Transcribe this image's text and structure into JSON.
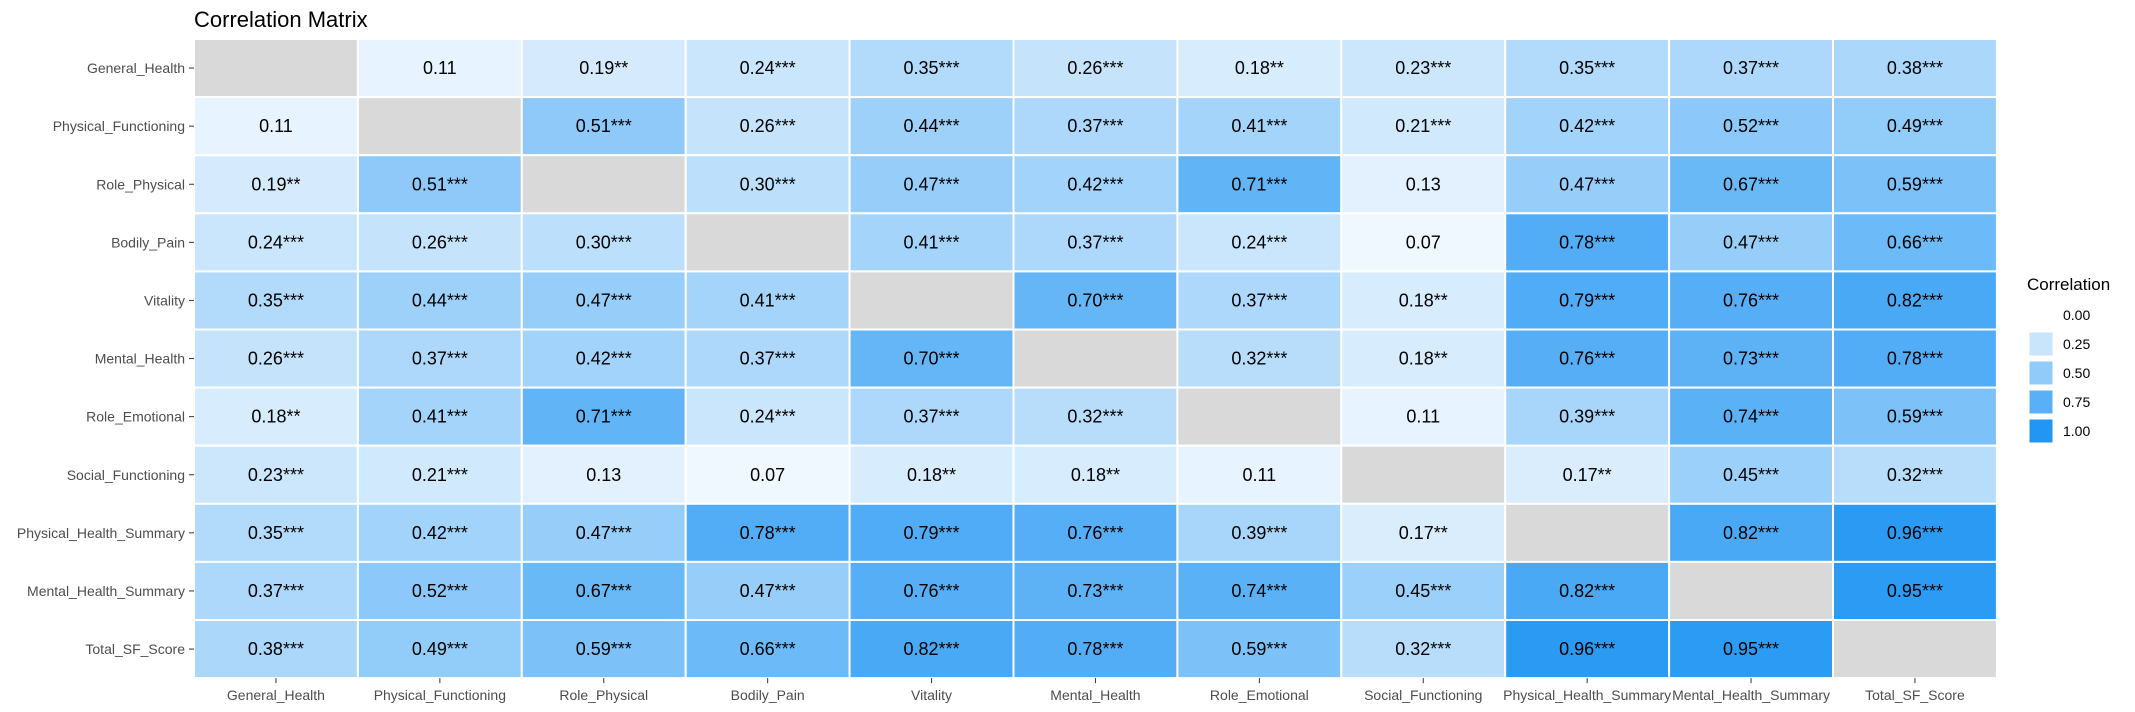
{
  "chart_data": {
    "type": "heatmap",
    "title": "Correlation Matrix",
    "variables": [
      "General_Health",
      "Physical_Functioning",
      "Role_Physical",
      "Bodily_Pain",
      "Vitality",
      "Mental_Health",
      "Role_Emotional",
      "Social_Functioning",
      "Physical_Health_Summary",
      "Mental_Health_Summary",
      "Total_SF_Score"
    ],
    "values": [
      [
        null,
        0.11,
        0.19,
        0.24,
        0.35,
        0.26,
        0.18,
        0.23,
        0.35,
        0.37,
        0.38
      ],
      [
        0.11,
        null,
        0.51,
        0.26,
        0.44,
        0.37,
        0.41,
        0.21,
        0.42,
        0.52,
        0.49
      ],
      [
        0.19,
        0.51,
        null,
        0.3,
        0.47,
        0.42,
        0.71,
        0.13,
        0.47,
        0.67,
        0.59
      ],
      [
        0.24,
        0.26,
        0.3,
        null,
        0.41,
        0.37,
        0.24,
        0.07,
        0.78,
        0.47,
        0.66
      ],
      [
        0.35,
        0.44,
        0.47,
        0.41,
        null,
        0.7,
        0.37,
        0.18,
        0.79,
        0.76,
        0.82
      ],
      [
        0.26,
        0.37,
        0.42,
        0.37,
        0.7,
        null,
        0.32,
        0.18,
        0.76,
        0.73,
        0.78
      ],
      [
        0.18,
        0.41,
        0.71,
        0.24,
        0.37,
        0.32,
        null,
        0.11,
        0.39,
        0.74,
        0.59
      ],
      [
        0.23,
        0.21,
        0.13,
        0.07,
        0.18,
        0.18,
        0.11,
        null,
        0.17,
        0.45,
        0.32
      ],
      [
        0.35,
        0.42,
        0.47,
        0.78,
        0.79,
        0.76,
        0.39,
        0.17,
        null,
        0.82,
        0.96
      ],
      [
        0.37,
        0.52,
        0.67,
        0.47,
        0.76,
        0.73,
        0.74,
        0.45,
        0.82,
        null,
        0.95
      ],
      [
        0.38,
        0.49,
        0.59,
        0.66,
        0.82,
        0.78,
        0.59,
        0.32,
        0.96,
        0.95,
        null
      ]
    ],
    "labels": [
      [
        "",
        "0.11",
        "0.19**",
        "0.24***",
        "0.35***",
        "0.26***",
        "0.18**",
        "0.23***",
        "0.35***",
        "0.37***",
        "0.38***"
      ],
      [
        "0.11",
        "",
        "0.51***",
        "0.26***",
        "0.44***",
        "0.37***",
        "0.41***",
        "0.21***",
        "0.42***",
        "0.52***",
        "0.49***"
      ],
      [
        "0.19**",
        "0.51***",
        "",
        "0.30***",
        "0.47***",
        "0.42***",
        "0.71***",
        "0.13",
        "0.47***",
        "0.67***",
        "0.59***"
      ],
      [
        "0.24***",
        "0.26***",
        "0.30***",
        "",
        "0.41***",
        "0.37***",
        "0.24***",
        "0.07",
        "0.78***",
        "0.47***",
        "0.66***"
      ],
      [
        "0.35***",
        "0.44***",
        "0.47***",
        "0.41***",
        "",
        "0.70***",
        "0.37***",
        "0.18**",
        "0.79***",
        "0.76***",
        "0.82***"
      ],
      [
        "0.26***",
        "0.37***",
        "0.42***",
        "0.37***",
        "0.70***",
        "",
        "0.32***",
        "0.18**",
        "0.76***",
        "0.73***",
        "0.78***"
      ],
      [
        "0.18**",
        "0.41***",
        "0.71***",
        "0.24***",
        "0.37***",
        "0.32***",
        "",
        "0.11",
        "0.39***",
        "0.74***",
        "0.59***"
      ],
      [
        "0.23***",
        "0.21***",
        "0.13",
        "0.07",
        "0.18**",
        "0.18**",
        "0.11",
        "",
        "0.17**",
        "0.45***",
        "0.32***"
      ],
      [
        "0.35***",
        "0.42***",
        "0.47***",
        "0.78***",
        "0.79***",
        "0.76***",
        "0.39***",
        "0.17**",
        "",
        "0.82***",
        "0.96***"
      ],
      [
        "0.37***",
        "0.52***",
        "0.67***",
        "0.47***",
        "0.76***",
        "0.73***",
        "0.74***",
        "0.45***",
        "0.82***",
        "",
        "0.95***"
      ],
      [
        "0.38***",
        "0.49***",
        "0.59***",
        "0.66***",
        "0.82***",
        "0.78***",
        "0.59***",
        "0.32***",
        "0.96***",
        "0.95***",
        ""
      ]
    ],
    "legend": {
      "title": "Correlation",
      "placement": "right",
      "breaks": [
        0.0,
        0.25,
        0.5,
        0.75,
        1.0
      ],
      "break_labels": [
        "0.00",
        "0.25",
        "0.50",
        "0.75",
        "1.00"
      ]
    },
    "color_scale": {
      "low": "#ffffff",
      "high": "#2196f3",
      "diagonal_na": "#d9d9d9",
      "grid_line": "#ffffff"
    },
    "xlabel": "",
    "ylabel": "",
    "grid": false
  }
}
